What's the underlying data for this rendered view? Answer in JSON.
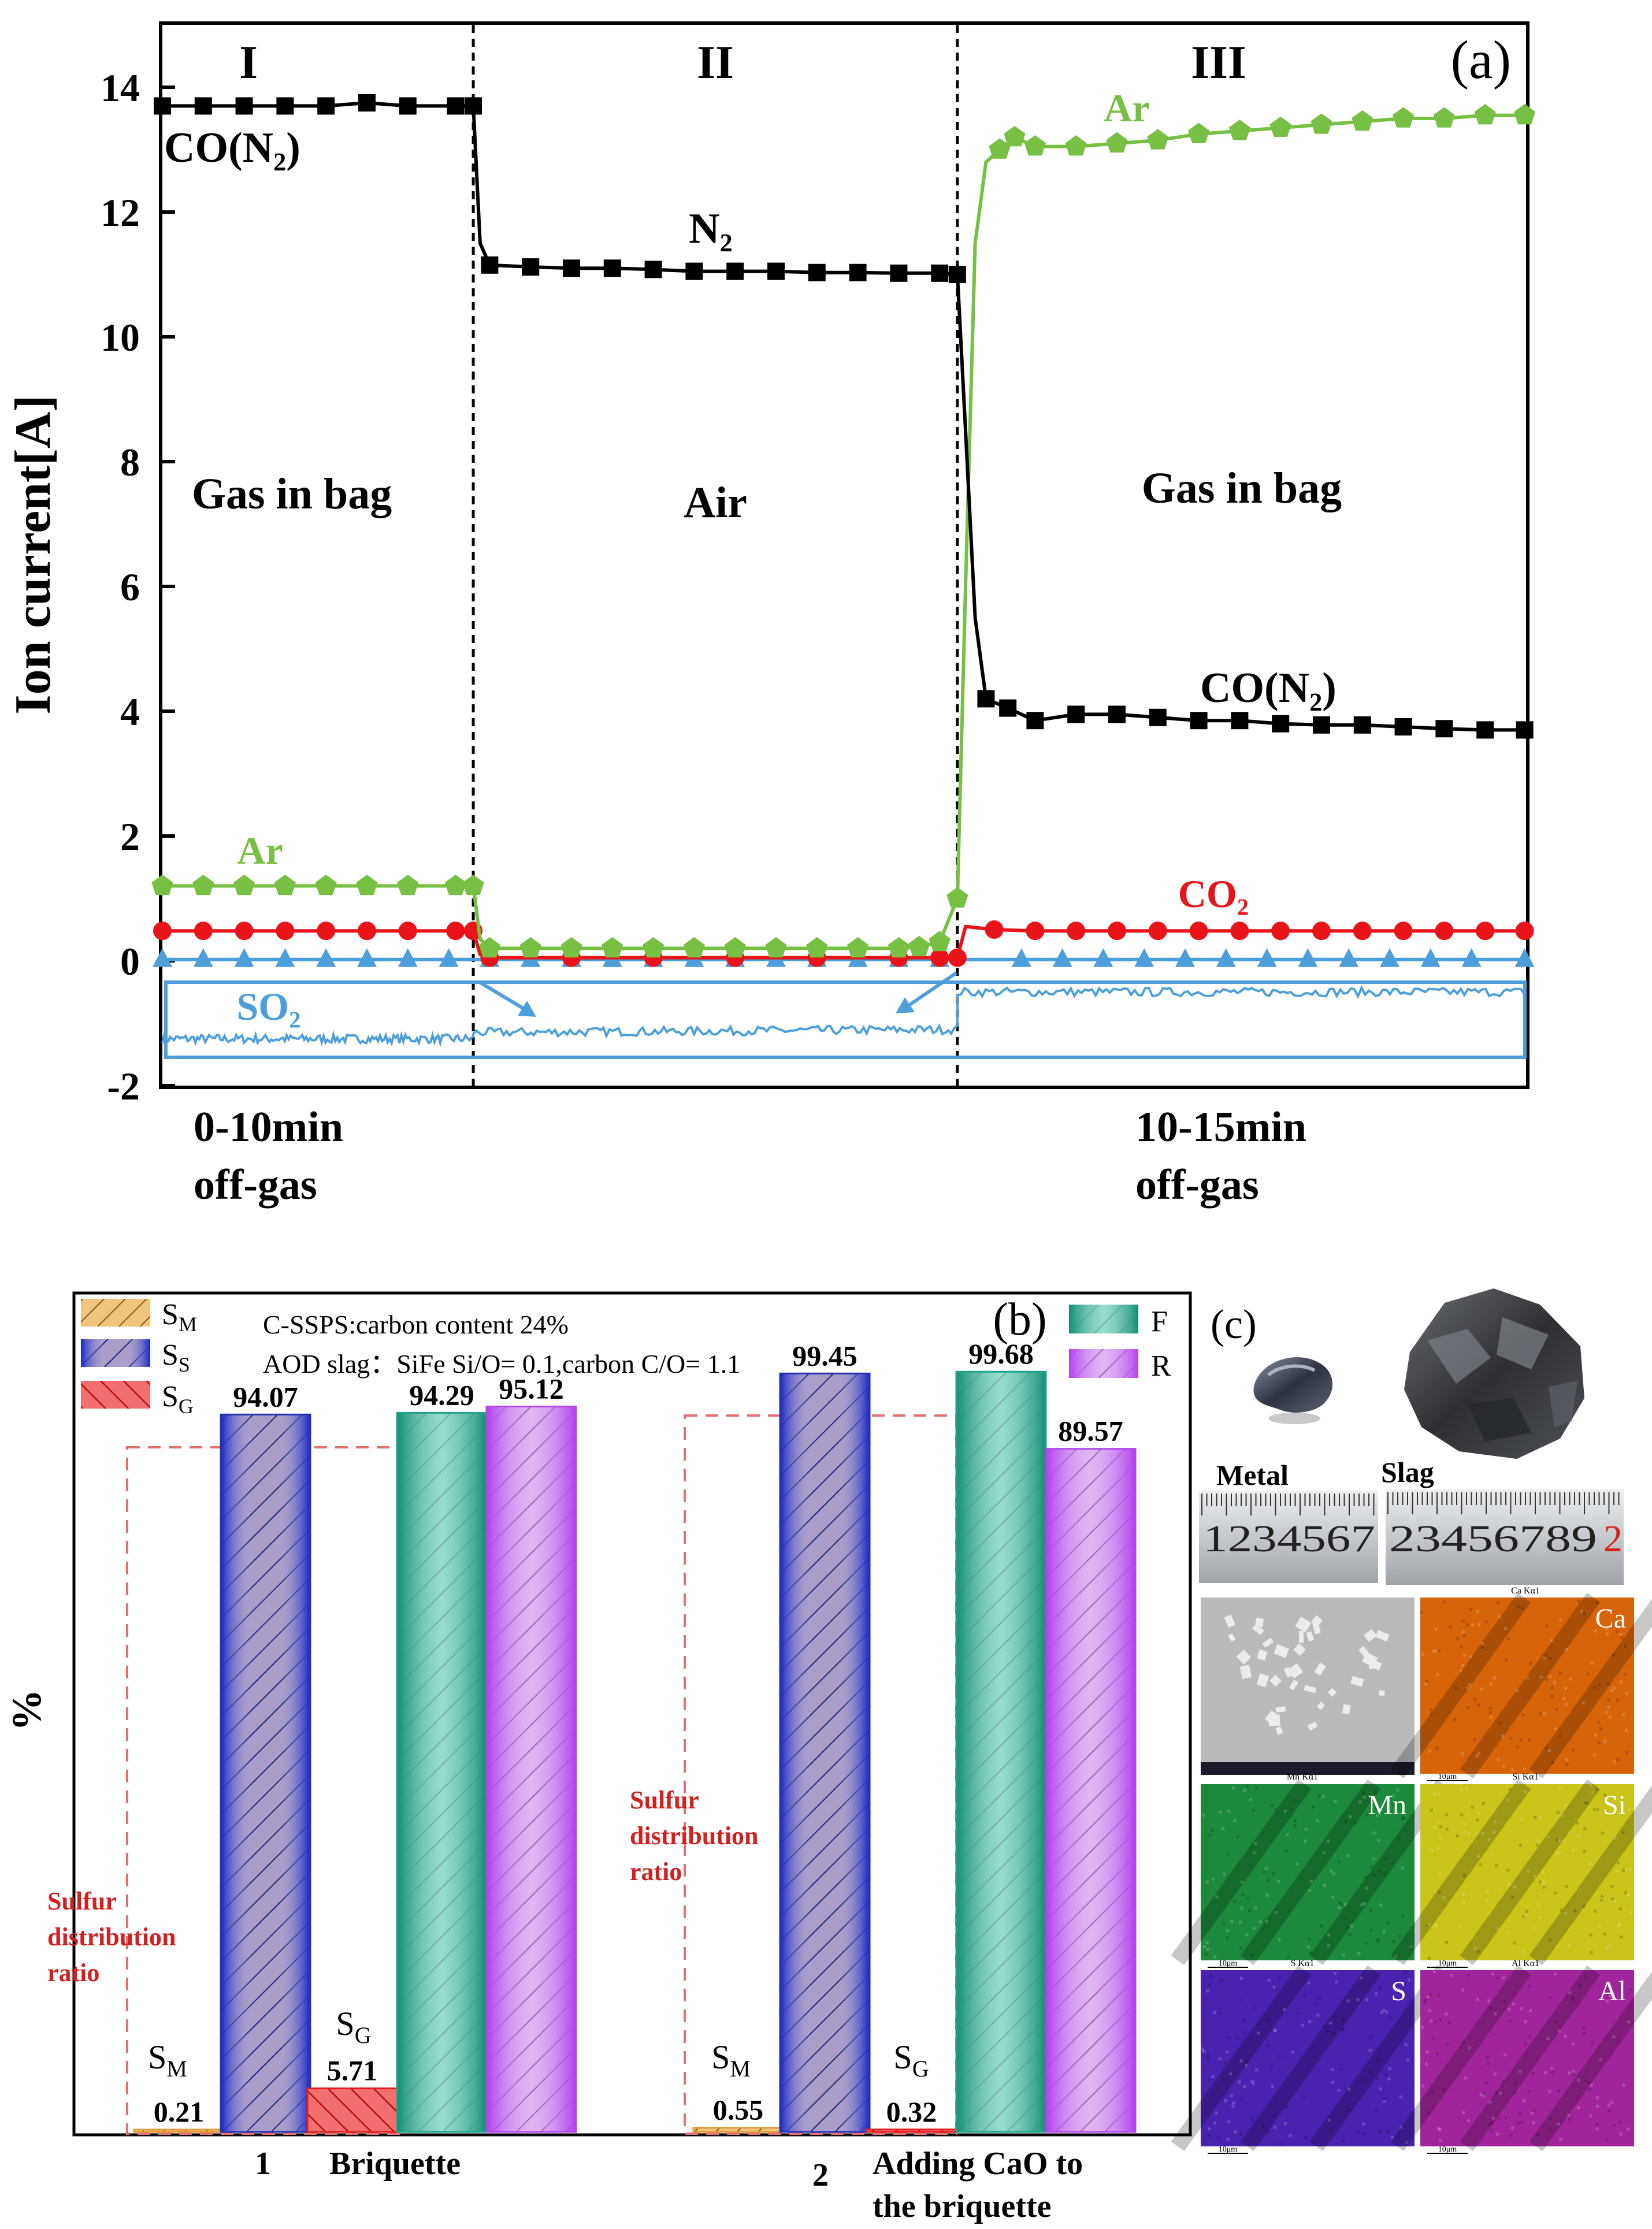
{
  "colors": {
    "black": "#000000",
    "green": "#77c043",
    "red": "#e8141a",
    "blue": "#4d9fdc",
    "label_red": "#d21f1f",
    "sm": "#e39a3a",
    "ss": "#2431b0",
    "sg": "#e21c1c",
    "f": "#1fa38a",
    "r": "#b149e6"
  },
  "chart_data": [
    {
      "id": "a",
      "type": "line",
      "panel_label": "(a)",
      "ylabel": "Ion current[A]",
      "ylim": [
        -2,
        15
      ],
      "yticks": [
        "14",
        "12",
        "10",
        "8",
        "6",
        "4",
        "2",
        "0",
        "-2"
      ],
      "x_range": [
        0,
        100
      ],
      "region_boundaries": [
        22.8,
        58.3
      ],
      "regions": [
        {
          "numeral": "I",
          "label": "Gas in bag",
          "bottom_label": [
            "0-10min",
            "off-gas"
          ]
        },
        {
          "numeral": "II",
          "label": "Air",
          "bottom_label": []
        },
        {
          "numeral": "III",
          "label": "Gas in bag",
          "bottom_label": [
            "10-15min",
            "off-gas"
          ]
        }
      ],
      "annotations": {
        "co_n2_left": "CO(N₂)",
        "n2": "N₂",
        "co_n2_right": "CO(N₂)",
        "ar_left": "Ar",
        "ar_right": "Ar",
        "co2": "CO₂",
        "so2": "SO₂"
      },
      "series": [
        {
          "name": "CO(N2)",
          "color_key": "black",
          "marker": "square",
          "x": [
            0,
            3,
            6,
            9,
            12,
            15,
            18,
            21.5,
            22.8,
            23.3,
            24,
            27,
            30,
            33,
            36,
            39,
            42,
            45,
            48,
            51,
            54,
            57,
            58.3,
            58.9,
            59.6,
            60.4,
            62,
            64,
            67,
            70,
            73,
            76,
            79,
            82,
            85,
            88,
            91,
            94,
            97,
            99.9
          ],
          "y": [
            13.7,
            13.7,
            13.7,
            13.7,
            13.7,
            13.75,
            13.7,
            13.7,
            13.7,
            11.5,
            11.15,
            11.12,
            11.1,
            11.1,
            11.08,
            11.05,
            11.05,
            11.05,
            11.03,
            11.03,
            11.02,
            11.02,
            11.0,
            8.5,
            5.5,
            4.2,
            4.05,
            3.85,
            3.95,
            3.95,
            3.9,
            3.85,
            3.85,
            3.8,
            3.78,
            3.78,
            3.75,
            3.72,
            3.7,
            3.7
          ]
        },
        {
          "name": "Ar",
          "color_key": "green",
          "marker": "pentagon",
          "x": [
            0,
            3,
            6,
            9,
            12,
            15,
            18,
            21.5,
            22.8,
            23.3,
            24,
            27,
            30,
            33,
            36,
            39,
            42,
            45,
            48,
            51,
            54,
            55.5,
            57,
            58.3,
            58.9,
            59.6,
            60.4,
            61.4,
            62.5,
            64,
            67,
            70,
            73,
            76,
            79,
            82,
            85,
            88,
            91,
            94,
            97,
            99.9
          ],
          "y": [
            1.2,
            1.2,
            1.2,
            1.2,
            1.2,
            1.2,
            1.2,
            1.2,
            1.2,
            0.35,
            0.2,
            0.2,
            0.2,
            0.2,
            0.2,
            0.2,
            0.2,
            0.2,
            0.2,
            0.2,
            0.2,
            0.22,
            0.3,
            1.0,
            6.0,
            11.5,
            12.8,
            13.0,
            13.2,
            13.05,
            13.05,
            13.1,
            13.15,
            13.25,
            13.3,
            13.35,
            13.4,
            13.45,
            13.5,
            13.5,
            13.55,
            13.55
          ]
        },
        {
          "name": "CO2",
          "color_key": "red",
          "marker": "circle",
          "x": [
            0,
            3,
            6,
            9,
            12,
            15,
            18,
            21.5,
            22.8,
            23.3,
            24,
            30,
            36,
            42,
            48,
            54,
            57,
            58.3,
            58.9,
            61,
            64,
            67,
            70,
            73,
            76,
            79,
            82,
            85,
            88,
            91,
            94,
            97,
            99.9
          ],
          "y": [
            0.48,
            0.48,
            0.48,
            0.48,
            0.48,
            0.48,
            0.48,
            0.48,
            0.48,
            0.1,
            0.05,
            0.05,
            0.05,
            0.05,
            0.05,
            0.05,
            0.05,
            0.05,
            0.55,
            0.5,
            0.48,
            0.48,
            0.48,
            0.48,
            0.48,
            0.48,
            0.48,
            0.48,
            0.48,
            0.48,
            0.48,
            0.48,
            0.48
          ]
        },
        {
          "name": "baseline",
          "color_key": "blue",
          "marker": "triangle",
          "x": [
            0,
            3,
            6,
            9,
            12,
            15,
            18,
            21,
            24,
            27,
            30,
            33,
            36,
            39,
            42,
            45,
            48,
            51,
            54,
            57,
            60,
            63,
            66,
            69,
            72,
            75,
            78,
            81,
            84,
            87,
            90,
            93,
            96,
            99.9
          ],
          "y": [
            0.02,
            0.02,
            0.02,
            0.02,
            0.02,
            0.02,
            0.02,
            0.02,
            0.02,
            0.02,
            0.02,
            0.02,
            0.02,
            0.02,
            0.02,
            0.02,
            0.02,
            0.02,
            0.02,
            0.02,
            0.02,
            0.02,
            0.02,
            0.02,
            0.02,
            0.02,
            0.02,
            0.02,
            0.02,
            0.02,
            0.02,
            0.02,
            0.02,
            0.02
          ]
        },
        {
          "name": "SO2",
          "color_key": "blue",
          "marker": "none",
          "segments": [
            {
              "x": [
                0,
                22.8
              ],
              "y_mean": -1.25
            },
            {
              "x": [
                22.8,
                58.3
              ],
              "y_mean": -1.15
            },
            {
              "x": [
                58.3,
                99.9
              ],
              "y_mean": -0.5
            }
          ]
        }
      ]
    },
    {
      "id": "b",
      "type": "bar",
      "panel_label": "(b)",
      "ylabel": "%",
      "ylim": [
        0,
        110
      ],
      "categories": [
        {
          "number": "1",
          "label": [
            "Briquette"
          ]
        },
        {
          "number": "2",
          "label": [
            "Adding CaO to",
            "the briquette"
          ]
        }
      ],
      "series": [
        {
          "name": "SM",
          "color_key": "sm",
          "values": [
            0.21,
            0.55
          ]
        },
        {
          "name": "SS",
          "color_key": "ss",
          "values": [
            94.07,
            99.45
          ]
        },
        {
          "name": "SG",
          "color_key": "sg",
          "values": [
            5.71,
            0.32
          ]
        },
        {
          "name": "F",
          "color_key": "f",
          "values": [
            94.29,
            99.68
          ]
        },
        {
          "name": "R",
          "color_key": "r",
          "values": [
            95.12,
            89.57
          ]
        }
      ],
      "value_labels": [
        [
          "0.21",
          "94.07",
          "5.71",
          "94.29",
          "95.12"
        ],
        [
          "0.55",
          "99.45",
          "0.32",
          "99.68",
          "89.57"
        ]
      ],
      "legend": [
        {
          "main": "S",
          "sub": "M"
        },
        {
          "main": "S",
          "sub": "S"
        },
        {
          "main": "S",
          "sub": "G"
        },
        {
          "main": "F",
          "sub": ""
        },
        {
          "main": "R",
          "sub": ""
        }
      ],
      "notes": [
        "C-SSPS:carbon content 24%",
        "AOD slag：SiFe  Si/O= 0.1,carbon C/O= 1.1"
      ],
      "bar_annotations": {
        "sm": {
          "main": "S",
          "sub": "M"
        },
        "sg": {
          "main": "S",
          "sub": "G"
        }
      },
      "box_label": [
        "Sulfur",
        "distribution",
        "ratio"
      ]
    }
  ],
  "panel_c": {
    "panel_label": "(c)",
    "sample_labels": [
      "Metal",
      "Slag"
    ],
    "ruler_left": "1234567",
    "ruler_right": "23456789",
    "ruler_right_end": "2",
    "map_titles": [
      "Ca Kα1",
      "Mn Kα1",
      "Si Kα1",
      "S Kα1",
      "Al Kα1"
    ],
    "elements": [
      "Ca",
      "Mn",
      "Si",
      "S",
      "Al"
    ],
    "scale_text": "10μm",
    "element_colors": [
      "#d8640a",
      "#1c8a3a",
      "#c8c41a",
      "#4a22b0",
      "#a0259c"
    ]
  }
}
